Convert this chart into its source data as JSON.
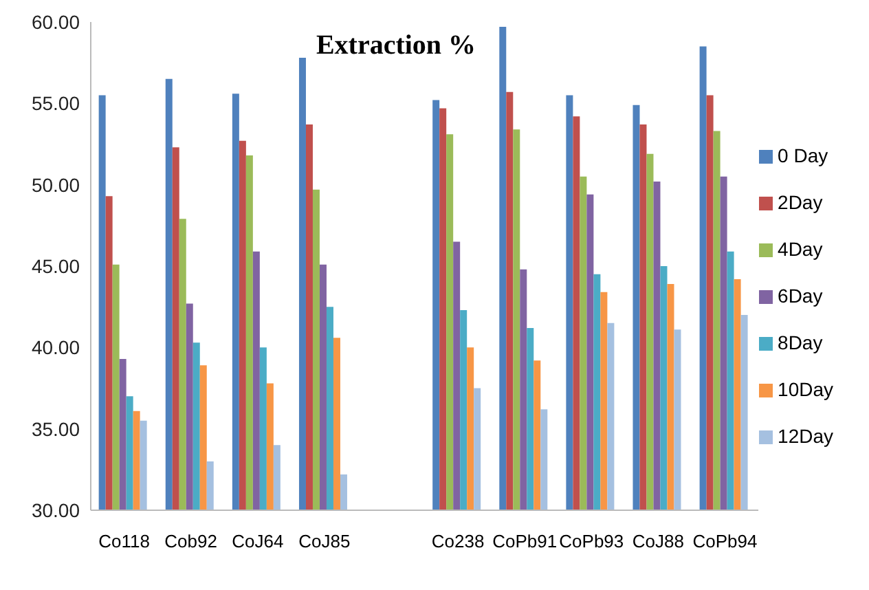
{
  "chart_data": {
    "type": "bar",
    "title": "Extraction %",
    "categories": [
      "Co118",
      "Cob92",
      "CoJ64",
      "CoJ85",
      null,
      "Co238",
      "CoPb91",
      "CoPb93",
      "CoJ88",
      "CoPb94"
    ],
    "series": [
      {
        "name": "0 Day",
        "color": "#4f81bd",
        "values": [
          55.5,
          56.5,
          55.6,
          57.8,
          null,
          55.2,
          59.7,
          55.5,
          54.9,
          58.5
        ]
      },
      {
        "name": "2Day",
        "color": "#c0504d",
        "values": [
          49.3,
          52.3,
          52.7,
          53.7,
          null,
          54.7,
          55.7,
          54.2,
          53.7,
          55.5
        ]
      },
      {
        "name": "4Day",
        "color": "#9bbb59",
        "values": [
          45.1,
          47.9,
          51.8,
          49.7,
          null,
          53.1,
          53.4,
          50.5,
          51.9,
          53.3
        ]
      },
      {
        "name": "6Day",
        "color": "#8064a2",
        "values": [
          39.3,
          42.7,
          45.9,
          45.1,
          null,
          46.5,
          44.8,
          49.4,
          50.2,
          50.5
        ]
      },
      {
        "name": "8Day",
        "color": "#4bacc6",
        "values": [
          37.0,
          40.3,
          40.0,
          42.5,
          null,
          42.3,
          41.2,
          44.5,
          45.0,
          45.9
        ]
      },
      {
        "name": "10Day",
        "color": "#f79646",
        "values": [
          36.1,
          38.9,
          37.8,
          40.6,
          null,
          40.0,
          39.2,
          43.4,
          43.9,
          44.2
        ]
      },
      {
        "name": "12Day",
        "color": "#a5c0e0",
        "values": [
          35.5,
          33.0,
          34.0,
          32.2,
          null,
          37.5,
          36.2,
          41.5,
          41.1,
          42.0
        ]
      }
    ],
    "ylim": [
      30,
      60
    ],
    "yticks": [
      {
        "value": 30,
        "label": "30.00"
      },
      {
        "value": 35,
        "label": "35.00"
      },
      {
        "value": 40,
        "label": "40.00"
      },
      {
        "value": 45,
        "label": "45.00"
      },
      {
        "value": 50,
        "label": "50.00"
      },
      {
        "value": 55,
        "label": "55.00"
      },
      {
        "value": 60,
        "label": "60.00"
      }
    ],
    "grid": false,
    "legend": "right"
  }
}
